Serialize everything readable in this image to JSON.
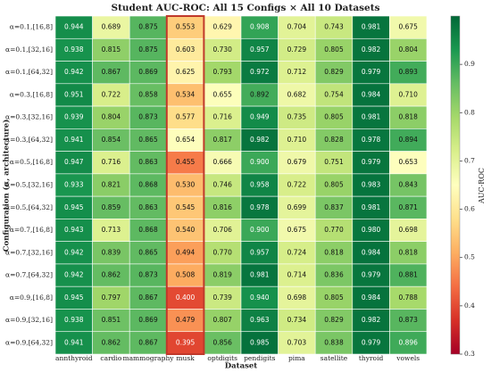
{
  "chart_data": {
    "type": "heatmap",
    "title": "Student AUC-ROC: All 15 Configs × All 10 Datasets",
    "x_label": "Dataset",
    "y_label": "Configuration (α, architecture)",
    "colorbar_label": "AUC-ROC",
    "colormap": "RdYlGn",
    "clim": [
      0.3,
      1.0
    ],
    "cticks": [
      0.3,
      0.4,
      0.5,
      0.6,
      0.7,
      0.8,
      0.9
    ],
    "highlight": "musk",
    "highlight_color": "#c0392b",
    "categories": [
      "annthyroid",
      "cardio",
      "mammography",
      "musk",
      "optdigits",
      "pendigits",
      "pima",
      "satellite",
      "thyroid",
      "vowels"
    ],
    "rows": [
      "α=0.1,[16,8]",
      "α=0.1,[32,16]",
      "α=0.1,[64,32]",
      "α=0.3,[16,8]",
      "α=0.3,[32,16]",
      "α=0.3,[64,32]",
      "α=0.5,[16,8]",
      "α=0.5,[32,16]",
      "α=0.5,[64,32]",
      "α=0.7,[16,8]",
      "α=0.7,[32,16]",
      "α=0.7,[64,32]",
      "α=0.9,[16,8]",
      "α=0.9,[32,16]",
      "α=0.9,[64,32]"
    ],
    "values": [
      [
        0.944,
        0.689,
        0.875,
        0.553,
        0.629,
        0.908,
        0.704,
        0.743,
        0.981,
        0.675
      ],
      [
        0.938,
        0.815,
        0.875,
        0.603,
        0.73,
        0.957,
        0.729,
        0.805,
        0.982,
        0.804
      ],
      [
        0.942,
        0.867,
        0.869,
        0.625,
        0.793,
        0.972,
        0.712,
        0.829,
        0.979,
        0.893
      ],
      [
        0.951,
        0.722,
        0.858,
        0.534,
        0.655,
        0.892,
        0.682,
        0.754,
        0.984,
        0.71
      ],
      [
        0.939,
        0.804,
        0.873,
        0.577,
        0.716,
        0.949,
        0.735,
        0.805,
        0.981,
        0.818
      ],
      [
        0.941,
        0.854,
        0.865,
        0.654,
        0.817,
        0.982,
        0.71,
        0.828,
        0.978,
        0.894
      ],
      [
        0.947,
        0.716,
        0.863,
        0.455,
        0.666,
        0.9,
        0.679,
        0.751,
        0.979,
        0.653
      ],
      [
        0.933,
        0.821,
        0.868,
        0.53,
        0.746,
        0.958,
        0.722,
        0.805,
        0.983,
        0.843
      ],
      [
        0.945,
        0.859,
        0.863,
        0.545,
        0.816,
        0.978,
        0.699,
        0.837,
        0.981,
        0.871
      ],
      [
        0.943,
        0.713,
        0.868,
        0.54,
        0.706,
        0.9,
        0.675,
        0.77,
        0.98,
        0.698
      ],
      [
        0.942,
        0.839,
        0.865,
        0.494,
        0.77,
        0.957,
        0.724,
        0.818,
        0.984,
        0.818
      ],
      [
        0.942,
        0.862,
        0.873,
        0.508,
        0.819,
        0.981,
        0.714,
        0.836,
        0.979,
        0.881
      ],
      [
        0.945,
        0.797,
        0.867,
        0.4,
        0.739,
        0.94,
        0.698,
        0.805,
        0.984,
        0.788
      ],
      [
        0.938,
        0.851,
        0.869,
        0.479,
        0.807,
        0.963,
        0.734,
        0.829,
        0.982,
        0.873
      ],
      [
        0.941,
        0.862,
        0.867,
        0.395,
        0.856,
        0.985,
        0.703,
        0.838,
        0.979,
        0.896
      ]
    ],
    "value_labels": [
      [
        "0.944",
        "0.689",
        "0.875",
        "0.553",
        "0.629",
        "0.908",
        "0.704",
        "0.743",
        "0.981",
        "0.675"
      ],
      [
        "0.938",
        "0.815",
        "0.875",
        "0.603",
        "0.730",
        "0.957",
        "0.729",
        "0.805",
        "0.982",
        "0.804"
      ],
      [
        "0.942",
        "0.867",
        "0.869",
        "0.625",
        "0.793",
        "0.972",
        "0.712",
        "0.829",
        "0.979",
        "0.893"
      ],
      [
        "0.951",
        "0.722",
        "0.858",
        "0.534",
        "0.655",
        "0.892",
        "0.682",
        "0.754",
        "0.984",
        "0.710"
      ],
      [
        "0.939",
        "0.804",
        "0.873",
        "0.577",
        "0.716",
        "0.949",
        "0.735",
        "0.805",
        "0.981",
        "0.818"
      ],
      [
        "0.941",
        "0.854",
        "0.865",
        "0.654",
        "0.817",
        "0.982",
        "0.710",
        "0.828",
        "0.978",
        "0.894"
      ],
      [
        "0.947",
        "0.716",
        "0.863",
        "0.455",
        "0.666",
        "0.900",
        "0.679",
        "0.751",
        "0.979",
        "0.653"
      ],
      [
        "0.933",
        "0.821",
        "0.868",
        "0.530",
        "0.746",
        "0.958",
        "0.722",
        "0.805",
        "0.983",
        "0.843"
      ],
      [
        "0.945",
        "0.859",
        "0.863",
        "0.545",
        "0.816",
        "0.978",
        "0.699",
        "0.837",
        "0.981",
        "0.871"
      ],
      [
        "0.943",
        "0.713",
        "0.868",
        "0.540",
        "0.706",
        "0.900",
        "0.675",
        "0.770",
        "0.980",
        "0.698"
      ],
      [
        "0.942",
        "0.839",
        "0.865",
        "0.494",
        "0.770",
        "0.957",
        "0.724",
        "0.818",
        "0.984",
        "0.818"
      ],
      [
        "0.942",
        "0.862",
        "0.873",
        "0.508",
        "0.819",
        "0.981",
        "0.714",
        "0.836",
        "0.979",
        "0.881"
      ],
      [
        "0.945",
        "0.797",
        "0.867",
        "0.400",
        "0.739",
        "0.940",
        "0.698",
        "0.805",
        "0.984",
        "0.788"
      ],
      [
        "0.938",
        "0.851",
        "0.869",
        "0.479",
        "0.807",
        "0.963",
        "0.734",
        "0.829",
        "0.982",
        "0.873"
      ],
      [
        "0.941",
        "0.862",
        "0.867",
        "0.395",
        "0.856",
        "0.985",
        "0.703",
        "0.838",
        "0.979",
        "0.896"
      ]
    ]
  }
}
